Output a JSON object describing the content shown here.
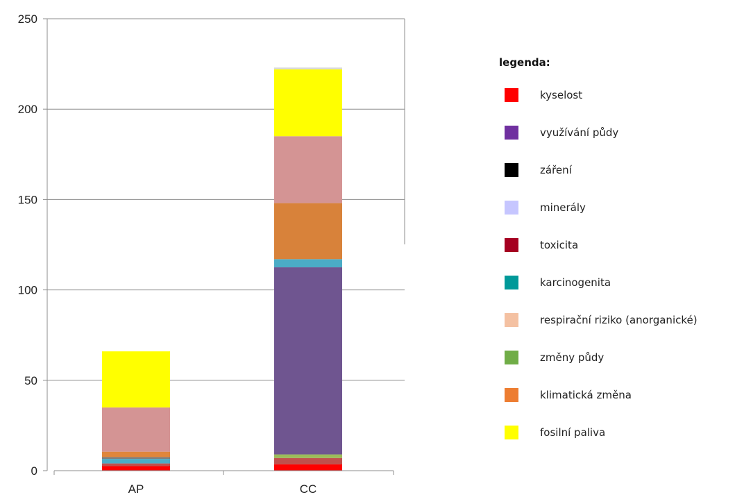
{
  "chart_data": {
    "type": "bar",
    "stacked": true,
    "categories": [
      "AP",
      "CC"
    ],
    "ylim": [
      0,
      250
    ],
    "yticks": [
      "0",
      "50",
      "100",
      "150",
      "200",
      "250"
    ],
    "grid": true,
    "legend_position": "right",
    "legend_title": "legenda:",
    "legend": [
      {
        "name": "kyselost",
        "color": "#ff0000"
      },
      {
        "name": "využívání půdy",
        "color": "#7030a0"
      },
      {
        "name": "záření",
        "color": "#000000"
      },
      {
        "name": "minerály",
        "color": "#c6c6ff"
      },
      {
        "name": "toxicita",
        "color": "#a50021"
      },
      {
        "name": "karcinogenita",
        "color": "#009999"
      },
      {
        "name": "respirační riziko (anorganické)",
        "color": "#f4c1a2"
      },
      {
        "name": "změny půdy",
        "color": "#70ad47"
      },
      {
        "name": "klimatická změna",
        "color": "#ed7d31"
      },
      {
        "name": "fosilní paliva",
        "color": "#ffff00"
      }
    ],
    "stacks": [
      {
        "category": "AP",
        "segments": [
          {
            "value": 2.5,
            "color": "#ff0000"
          },
          {
            "value": 1.5,
            "color": "#c0504d"
          },
          {
            "value": 2.5,
            "color": "#4bacc6"
          },
          {
            "value": 1.0,
            "color": "#7f7f7f"
          },
          {
            "value": 3.0,
            "color": "#e0863c"
          },
          {
            "value": 24.5,
            "color": "#d49494"
          },
          {
            "value": 31.0,
            "color": "#ffff00"
          }
        ]
      },
      {
        "category": "CC",
        "segments": [
          {
            "value": 3.5,
            "color": "#ff0000"
          },
          {
            "value": 3.5,
            "color": "#c0504d"
          },
          {
            "value": 2.0,
            "color": "#9bbb59"
          },
          {
            "value": 103.5,
            "color": "#6f5590"
          },
          {
            "value": 4.5,
            "color": "#4bacc6"
          },
          {
            "value": 31.0,
            "color": "#d8823a"
          },
          {
            "value": 37.0,
            "color": "#d49494"
          },
          {
            "value": 37.0,
            "color": "#ffff00"
          },
          {
            "value": 1.0,
            "color": "#d9d9d9"
          }
        ]
      }
    ]
  }
}
